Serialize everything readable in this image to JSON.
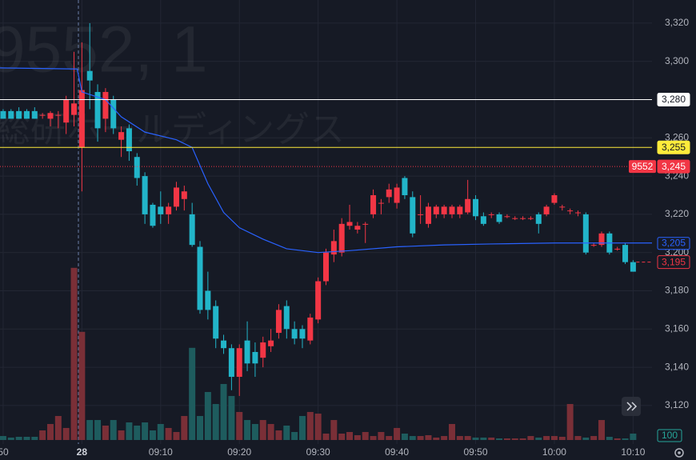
{
  "chart_data": {
    "type": "candlestick",
    "watermark": [
      "9552, 1",
      "総研ホールディングス"
    ],
    "x": [
      -10,
      -9,
      -8,
      -7,
      -6,
      -5,
      -4,
      -3,
      -2,
      -1,
      0,
      1,
      2,
      3,
      4,
      5,
      6,
      7,
      8,
      9,
      10,
      11,
      12,
      13,
      14,
      15,
      16,
      17,
      18,
      19,
      20,
      21,
      22,
      23,
      24,
      25,
      26,
      27,
      28,
      29,
      30,
      31,
      32,
      33,
      34,
      35,
      36,
      37,
      38,
      39,
      40,
      41,
      42,
      43,
      44,
      45,
      46,
      47,
      48,
      49,
      50,
      51,
      52,
      53,
      54,
      55,
      56,
      57,
      58,
      59,
      60,
      61,
      62,
      63,
      64,
      65,
      66,
      67,
      68,
      69,
      70
    ],
    "ohlc": [
      [
        3274,
        3275,
        3270,
        3270
      ],
      [
        3274,
        3275,
        3270,
        3270
      ],
      [
        3274,
        3276,
        3270,
        3270
      ],
      [
        3274,
        3275,
        3270,
        3270
      ],
      [
        3274,
        3276,
        3270,
        3270
      ],
      [
        3272,
        3273,
        3270,
        3272
      ],
      [
        3270,
        3274,
        3266,
        3273
      ],
      [
        3272,
        3274,
        3265,
        3272
      ],
      [
        3268,
        3282,
        3262,
        3280
      ],
      [
        3272,
        3305,
        3266,
        3278
      ],
      [
        3255,
        3310,
        3232,
        3285
      ],
      [
        3295,
        3320,
        3275,
        3290
      ],
      [
        3284,
        3288,
        3258,
        3265
      ],
      [
        3270,
        3286,
        3263,
        3284
      ],
      [
        3280,
        3282,
        3262,
        3265
      ],
      [
        3259,
        3266,
        3250,
        3263
      ],
      [
        3265,
        3267,
        3248,
        3253
      ],
      [
        3250,
        3252,
        3235,
        3239
      ],
      [
        3240,
        3242,
        3215,
        3220
      ],
      [
        3225,
        3226,
        3213,
        3214
      ],
      [
        3224,
        3232,
        3215,
        3220
      ],
      [
        3220,
        3226,
        3215,
        3224
      ],
      [
        3224,
        3237,
        3222,
        3234
      ],
      [
        3228,
        3235,
        3222,
        3232
      ],
      [
        3220,
        3226,
        3203,
        3204
      ],
      [
        3203,
        3206,
        3168,
        3170
      ],
      [
        3180,
        3190,
        3165,
        3170
      ],
      [
        3172,
        3175,
        3150,
        3155
      ],
      [
        3154,
        3157,
        3147,
        3150
      ],
      [
        3150,
        3152,
        3128,
        3135
      ],
      [
        3135,
        3152,
        3125,
        3150
      ],
      [
        3154,
        3164,
        3138,
        3142
      ],
      [
        3148,
        3153,
        3135,
        3142
      ],
      [
        3145,
        3156,
        3140,
        3153
      ],
      [
        3151,
        3160,
        3148,
        3154
      ],
      [
        3158,
        3173,
        3155,
        3170
      ],
      [
        3172,
        3175,
        3155,
        3160
      ],
      [
        3160,
        3164,
        3152,
        3155
      ],
      [
        3160,
        3162,
        3150,
        3155
      ],
      [
        3154,
        3168,
        3152,
        3166
      ],
      [
        3165,
        3187,
        3163,
        3185
      ],
      [
        3185,
        3202,
        3183,
        3200
      ],
      [
        3199,
        3212,
        3195,
        3206
      ],
      [
        3200,
        3218,
        3198,
        3215
      ],
      [
        3214,
        3225,
        3212,
        3216
      ],
      [
        3212,
        3216,
        3210,
        3214
      ],
      [
        3215,
        3216,
        3205,
        3215
      ],
      [
        3220,
        3233,
        3218,
        3230
      ],
      [
        3226,
        3228,
        3220,
        3226
      ],
      [
        3229,
        3236,
        3226,
        3233
      ],
      [
        3226,
        3236,
        3223,
        3234
      ],
      [
        3239,
        3240,
        3228,
        3230
      ],
      [
        3229,
        3232,
        3208,
        3210
      ],
      [
        3220,
        3230,
        3215,
        3220
      ],
      [
        3215,
        3226,
        3213,
        3224
      ],
      [
        3220,
        3225,
        3218,
        3224
      ],
      [
        3220,
        3225,
        3218,
        3224
      ],
      [
        3220,
        3225,
        3218,
        3224
      ],
      [
        3220,
        3225,
        3218,
        3224
      ],
      [
        3221,
        3238,
        3220,
        3228
      ],
      [
        3228,
        3230,
        3217,
        3219
      ],
      [
        3219,
        3221,
        3214,
        3215
      ],
      [
        3220,
        3221,
        3218,
        3220
      ],
      [
        3220,
        3221,
        3215,
        3216
      ],
      [
        3219,
        3220,
        3218,
        3219
      ],
      [
        3218,
        3219,
        3217,
        3218
      ],
      [
        3218,
        3219,
        3217,
        3218
      ],
      [
        3218,
        3219,
        3217,
        3218
      ],
      [
        3220,
        3221,
        3210,
        3215
      ],
      [
        3220,
        3225,
        3219,
        3224
      ],
      [
        3226,
        3231,
        3225,
        3230
      ],
      [
        3224,
        3225,
        3222,
        3224
      ],
      [
        3222,
        3223,
        3220,
        3222
      ],
      [
        3221,
        3222,
        3219,
        3221
      ],
      [
        3220,
        3221,
        3199,
        3200
      ],
      [
        3204,
        3205,
        3203,
        3204
      ],
      [
        3204,
        3211,
        3203,
        3210
      ],
      [
        3210,
        3211,
        3199,
        3200
      ],
      [
        3202,
        3203,
        3201,
        3202
      ],
      [
        3204,
        3205,
        3194,
        3195
      ],
      [
        3195,
        3196,
        3190,
        3190
      ]
    ],
    "up_color": "#f23645",
    "down_color": "#22b5c9",
    "volume": {
      "values": [
        62,
        38,
        50,
        50,
        50,
        150,
        250,
        375,
        188,
        2690,
        1690,
        312,
        312,
        225,
        312,
        150,
        275,
        225,
        275,
        150,
        250,
        188,
        125,
        375,
        1440,
        375,
        750,
        562,
        875,
        688,
        438,
        312,
        250,
        312,
        250,
        150,
        225,
        125,
        375,
        438,
        412,
        100,
        312,
        100,
        125,
        75,
        125,
        62,
        125,
        62,
        188,
        100,
        62,
        62,
        75,
        38,
        62,
        250,
        62,
        62,
        38,
        38,
        38,
        25,
        25,
        25,
        25,
        62,
        38,
        62,
        62,
        50,
        562,
        62,
        38,
        62,
        312,
        50,
        25,
        25,
        100
      ],
      "ylim": [
        0,
        3000
      ],
      "up_color": "#7a2f37",
      "down_color": "#1e5c5e"
    },
    "line": {
      "color": "#2962ff",
      "x": [
        -10.4,
        -0.6,
        0,
        3,
        5,
        8,
        12,
        14,
        16,
        18,
        20,
        23,
        26,
        30,
        34,
        40,
        46,
        52,
        60,
        68,
        72.4
      ],
      "values": [
        3296.6,
        3296,
        3284,
        3280,
        3271,
        3263,
        3259,
        3255,
        3236,
        3221,
        3213,
        3207,
        3202,
        3200,
        3201,
        3203,
        3204,
        3204.5,
        3205,
        3205,
        3205
      ],
      "last_label": {
        "value": 3205,
        "label": "3,205"
      }
    },
    "price_lines": [
      {
        "value": 3280,
        "label": "3,280",
        "color": "#ffffff",
        "style": "solid",
        "label_style": "filled"
      },
      {
        "value": 3255,
        "label": "3,255",
        "color": "#ffeb3b",
        "style": "solid",
        "label_style": "filled"
      },
      {
        "value": 3245,
        "label": "3,245",
        "tag": "9552",
        "color": "#f23645",
        "style": "dotted",
        "label_style": "filled"
      },
      {
        "value": 3195,
        "label": "3,195",
        "color": "#f23645",
        "style": "dashed",
        "label_style": "outline"
      }
    ],
    "xlim": [
      -10.4,
      72.4
    ],
    "ylim": [
      3091.5,
      3332.1
    ],
    "xticks": [
      {
        "value": -10,
        "label": "50"
      },
      {
        "value": 0,
        "label": "28"
      },
      {
        "value": 10,
        "label": "09:10"
      },
      {
        "value": 20,
        "label": "09:20"
      },
      {
        "value": 30,
        "label": "09:30"
      },
      {
        "value": 40,
        "label": "09:40"
      },
      {
        "value": 50,
        "label": "09:50"
      },
      {
        "value": 60,
        "label": "10:00"
      },
      {
        "value": 70,
        "label": "10:10"
      }
    ],
    "yticks": [
      {
        "value": 3120,
        "label": "3,120"
      },
      {
        "value": 3140,
        "label": "3,140"
      },
      {
        "value": 3160,
        "label": "3,160"
      },
      {
        "value": 3180,
        "label": "3,180"
      },
      {
        "value": 3200,
        "label": "3,200"
      },
      {
        "value": 3220,
        "label": "3,220"
      },
      {
        "value": 3240,
        "label": "3,240"
      },
      {
        "value": 3260,
        "label": "3,260"
      },
      {
        "value": 3280,
        "label": "3,280"
      },
      {
        "value": 3300,
        "label": "3,300"
      },
      {
        "value": 3320,
        "label": "3,320"
      }
    ],
    "grid": true
  }
}
